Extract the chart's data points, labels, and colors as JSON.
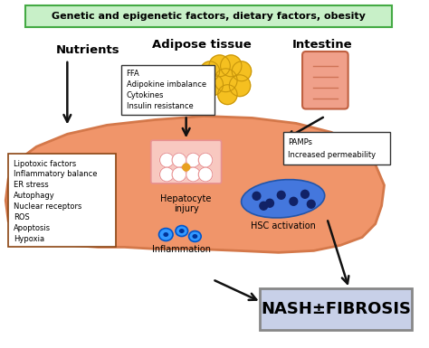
{
  "title_text": "Genetic and epigenetic factors, dietary factors, obesity",
  "title_box_facecolor": "#c8f0c8",
  "title_box_edgecolor": "#44aa44",
  "bg_color": "#FFFFFF",
  "liver_color": "#F0956A",
  "liver_edge_color": "#D4784A",
  "nutrients_label": "Nutrients",
  "adipose_label": "Adipose tissue",
  "intestine_label": "Intestine",
  "adipose_box_lines": [
    "FFA",
    "Adipokine imbalance",
    "Cytokines",
    "Insulin resistance"
  ],
  "intestine_box_lines": [
    "PAMPs",
    "Increased permeability"
  ],
  "liver_box_lines": [
    "Lipotoxic factors",
    "Inflammatory balance",
    "ER stress",
    "Autophagy",
    "Nuclear receptors",
    "ROS",
    "Apoptosis",
    "Hypoxia"
  ],
  "hepatocyte_label": "Hepatocyte\ninjury",
  "inflammation_label": "Inflammation",
  "hsc_label": "HSC activation",
  "nash_label": "NASH±FIBROSIS",
  "nash_box_facecolor": "#c8d0e8",
  "nash_box_edgecolor": "#888888",
  "arrow_color": "#111111",
  "liver_x": [
    8,
    5,
    8,
    18,
    40,
    75,
    120,
    175,
    230,
    285,
    335,
    375,
    405,
    425,
    435,
    432,
    425,
    410,
    385,
    355,
    315,
    270,
    220,
    175,
    140,
    110,
    80,
    55,
    30,
    15,
    8
  ],
  "liver_y": [
    245,
    222,
    198,
    178,
    162,
    148,
    138,
    132,
    128,
    130,
    136,
    146,
    162,
    182,
    205,
    228,
    248,
    263,
    272,
    278,
    280,
    278,
    276,
    276,
    274,
    274,
    272,
    264,
    256,
    250,
    245
  ]
}
